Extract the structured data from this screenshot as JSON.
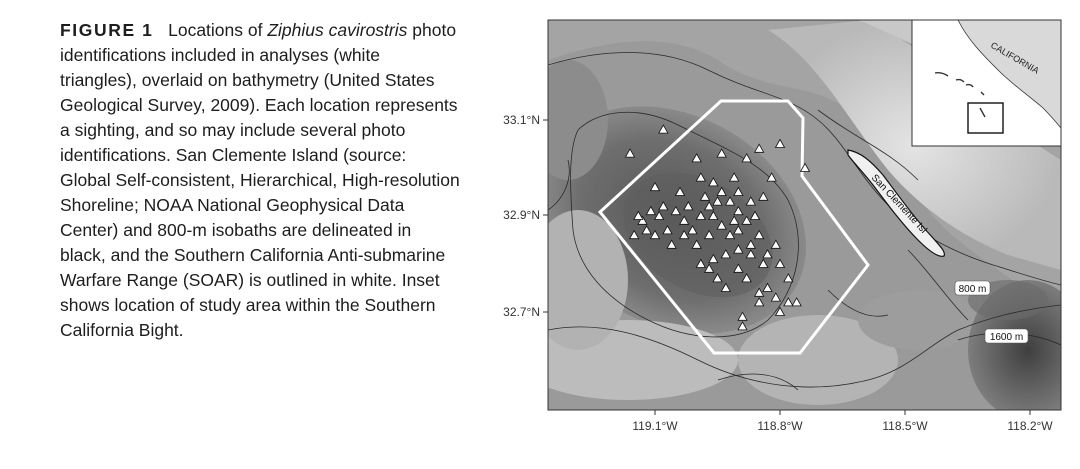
{
  "caption": {
    "label": "FIGURE 1",
    "text_before": "Locations of ",
    "species": "Ziphius cavirostris",
    "text_after": " photo identifications included in analyses (white triangles), overlaid on bathymetry (United States Geological Survey, 2009). Each location represents a sighting, and so may include several photo identifications. San Clemente Island (source: Global Self-consistent, Hierarchical, High-resolution Shoreline; NOAA National Geophysical Data Center) and 800-m isobaths are delineated in black, and the Southern California Anti-submarine Warfare Range (SOAR) is outlined in white. Inset shows location of study area within the Southern California Bight."
  },
  "map": {
    "lat_ticks": [
      "33.1°N",
      "32.9°N",
      "32.7°N"
    ],
    "lon_ticks": [
      "119.1°W",
      "118.8°W",
      "118.5°W",
      "118.2°W"
    ],
    "island_label": "San Clemente Isl",
    "isobath_labels": [
      "800 m",
      "1600 m"
    ],
    "inset_label": "CALIFORNIA",
    "colors": {
      "soar_outline": "#ffffff",
      "triangle_fill": "#ffffff",
      "land": "#d9d9d9",
      "isobath": "#222222"
    },
    "sightings": [
      [
        -119.08,
        33.08
      ],
      [
        -119.16,
        33.03
      ],
      [
        -119.0,
        33.02
      ],
      [
        -118.94,
        33.03
      ],
      [
        -118.88,
        33.02
      ],
      [
        -118.85,
        33.04
      ],
      [
        -118.8,
        33.05
      ],
      [
        -118.74,
        33.0
      ],
      [
        -118.82,
        32.98
      ],
      [
        -118.84,
        32.94
      ],
      [
        -119.1,
        32.96
      ],
      [
        -119.04,
        32.95
      ],
      [
        -118.99,
        32.98
      ],
      [
        -118.96,
        32.97
      ],
      [
        -118.91,
        32.98
      ],
      [
        -118.97,
        32.92
      ],
      [
        -118.95,
        32.93
      ],
      [
        -118.94,
        32.95
      ],
      [
        -118.96,
        32.9
      ],
      [
        -118.99,
        32.9
      ],
      [
        -119.02,
        32.92
      ],
      [
        -119.05,
        32.91
      ],
      [
        -119.08,
        32.92
      ],
      [
        -119.11,
        32.91
      ],
      [
        -119.13,
        32.89
      ],
      [
        -119.09,
        32.9
      ],
      [
        -119.12,
        32.87
      ],
      [
        -119.1,
        32.86
      ],
      [
        -119.07,
        32.87
      ],
      [
        -119.06,
        32.84
      ],
      [
        -119.03,
        32.86
      ],
      [
        -119.01,
        32.87
      ],
      [
        -119.0,
        32.84
      ],
      [
        -118.97,
        32.86
      ],
      [
        -118.94,
        32.88
      ],
      [
        -118.92,
        32.86
      ],
      [
        -118.9,
        32.87
      ],
      [
        -118.88,
        32.89
      ],
      [
        -118.87,
        32.84
      ],
      [
        -118.85,
        32.86
      ],
      [
        -118.83,
        32.82
      ],
      [
        -118.81,
        32.84
      ],
      [
        -118.9,
        32.83
      ],
      [
        -118.93,
        32.82
      ],
      [
        -118.96,
        32.81
      ],
      [
        -118.97,
        32.79
      ],
      [
        -118.99,
        32.8
      ],
      [
        -118.95,
        32.77
      ],
      [
        -118.93,
        32.75
      ],
      [
        -118.9,
        32.79
      ],
      [
        -118.88,
        32.77
      ],
      [
        -118.87,
        32.82
      ],
      [
        -118.84,
        32.8
      ],
      [
        -118.8,
        32.8
      ],
      [
        -118.78,
        32.77
      ],
      [
        -118.83,
        32.75
      ],
      [
        -118.85,
        32.72
      ],
      [
        -118.81,
        32.73
      ],
      [
        -118.78,
        32.72
      ],
      [
        -118.76,
        32.72
      ],
      [
        -118.8,
        32.7
      ],
      [
        -118.89,
        32.69
      ],
      [
        -118.89,
        32.67
      ],
      [
        -118.85,
        32.74
      ],
      [
        -119.14,
        32.9
      ],
      [
        -119.15,
        32.86
      ],
      [
        -118.92,
        32.93
      ],
      [
        -118.9,
        32.91
      ],
      [
        -118.86,
        32.9
      ],
      [
        -118.9,
        32.95
      ],
      [
        -118.87,
        32.93
      ],
      [
        -118.91,
        32.89
      ],
      [
        -119.03,
        32.89
      ],
      [
        -118.98,
        32.94
      ]
    ]
  }
}
